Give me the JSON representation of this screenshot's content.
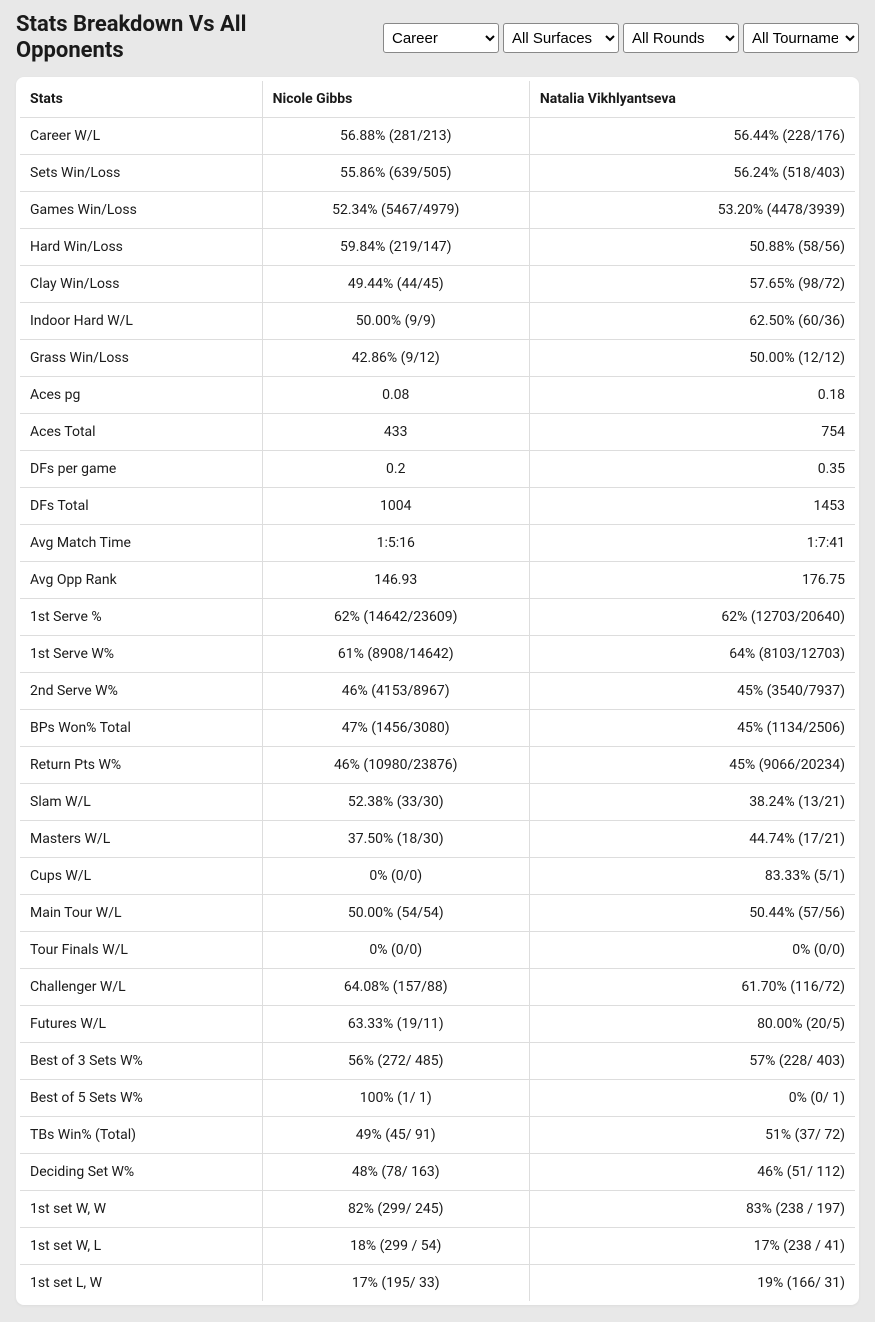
{
  "header": {
    "title": "Stats Breakdown Vs All Opponents",
    "selects": {
      "period": {
        "value": "Career",
        "options": [
          "Career"
        ]
      },
      "surface": {
        "value": "All Surfaces",
        "options": [
          "All Surfaces"
        ]
      },
      "round": {
        "value": "All Rounds",
        "options": [
          "All Rounds"
        ]
      },
      "tourn": {
        "value": "All Tournaments",
        "options": [
          "All Tournaments"
        ]
      }
    }
  },
  "table": {
    "columns": [
      "Stats",
      "Nicole Gibbs",
      "Natalia Vikhlyantseva"
    ],
    "rows": [
      [
        "Career W/L",
        "56.88% (281/213)",
        "56.44% (228/176)"
      ],
      [
        "Sets Win/Loss",
        "55.86% (639/505)",
        "56.24% (518/403)"
      ],
      [
        "Games Win/Loss",
        "52.34% (5467/4979)",
        "53.20% (4478/3939)"
      ],
      [
        "Hard Win/Loss",
        "59.84% (219/147)",
        "50.88% (58/56)"
      ],
      [
        "Clay Win/Loss",
        "49.44% (44/45)",
        "57.65% (98/72)"
      ],
      [
        "Indoor Hard W/L",
        "50.00% (9/9)",
        "62.50% (60/36)"
      ],
      [
        "Grass Win/Loss",
        "42.86% (9/12)",
        "50.00% (12/12)"
      ],
      [
        "Aces pg",
        "0.08",
        "0.18"
      ],
      [
        "Aces Total",
        "433",
        "754"
      ],
      [
        "DFs per game",
        "0.2",
        "0.35"
      ],
      [
        "DFs Total",
        "1004",
        "1453"
      ],
      [
        "Avg Match Time",
        "1:5:16",
        "1:7:41"
      ],
      [
        "Avg Opp Rank",
        "146.93",
        "176.75"
      ],
      [
        "1st Serve %",
        "62% (14642/23609)",
        "62% (12703/20640)"
      ],
      [
        "1st Serve W%",
        "61% (8908/14642)",
        "64% (8103/12703)"
      ],
      [
        "2nd Serve W%",
        "46% (4153/8967)",
        "45% (3540/7937)"
      ],
      [
        "BPs Won% Total",
        "47% (1456/3080)",
        "45% (1134/2506)"
      ],
      [
        "Return Pts W%",
        "46% (10980/23876)",
        "45% (9066/20234)"
      ],
      [
        "Slam W/L",
        "52.38% (33/30)",
        "38.24% (13/21)"
      ],
      [
        "Masters W/L",
        "37.50% (18/30)",
        "44.74% (17/21)"
      ],
      [
        "Cups W/L",
        "0% (0/0)",
        "83.33% (5/1)"
      ],
      [
        "Main Tour W/L",
        "50.00% (54/54)",
        "50.44% (57/56)"
      ],
      [
        "Tour Finals W/L",
        "0% (0/0)",
        "0% (0/0)"
      ],
      [
        "Challenger W/L",
        "64.08% (157/88)",
        "61.70% (116/72)"
      ],
      [
        "Futures W/L",
        "63.33% (19/11)",
        "80.00% (20/5)"
      ],
      [
        "Best of 3 Sets W%",
        "56% (272/ 485)",
        "57% (228/ 403)"
      ],
      [
        "Best of 5 Sets W%",
        "100% (1/ 1)",
        "0% (0/ 1)"
      ],
      [
        "TBs Win% (Total)",
        "49% (45/ 91)",
        "51% (37/ 72)"
      ],
      [
        "Deciding Set W%",
        "48% (78/ 163)",
        "46% (51/ 112)"
      ],
      [
        "1st set W, W",
        "82% (299/ 245)",
        "83% (238 / 197)"
      ],
      [
        "1st set W, L",
        "18% (299 / 54)",
        "17% (238 / 41)"
      ],
      [
        "1st set L, W",
        "17% (195/ 33)",
        "19% (166/ 31)"
      ]
    ]
  },
  "style": {
    "background": "#e8e8e8",
    "table_background": "#ffffff",
    "border_color": "#dddddd",
    "header_font_size": 22,
    "cell_font_size": 14,
    "col_widths_pct": [
      29,
      32,
      39
    ],
    "col_align": [
      "left",
      "center",
      "right"
    ]
  }
}
